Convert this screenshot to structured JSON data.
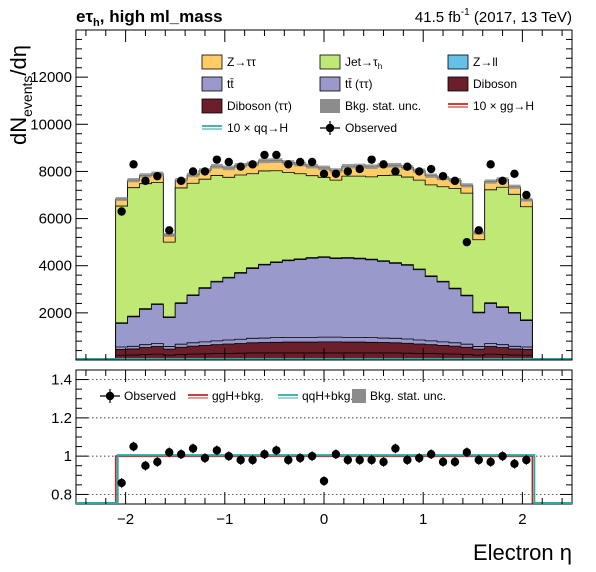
{
  "header": {
    "channel": "eτh",
    "channel_base": "eτ",
    "channel_sub": "h",
    "category": ", high ml_mass",
    "lumi_value": "41.5 fb",
    "lumi_exp": "-1",
    "lumi_rest": " (2017, 13 TeV)"
  },
  "axes": {
    "ylabel_main": "dNevents/dη",
    "ylabel_base": "dN",
    "ylabel_sub": "events",
    "ylabel_tail": "/dη",
    "xlabel": "Electron  η"
  },
  "colors": {
    "ztt": "#ffcc66",
    "jet": "#c0e874",
    "zll": "#64c0e8",
    "ttbar": "#9999cc",
    "ttbar_tt": "#9999cc",
    "diboson": "#6b1f2a",
    "diboson_tt": "#6b1f2a",
    "stat": "#8c8c8c",
    "ggh": "#cc2222",
    "qqh": "#2aa9a0",
    "observed": "#000000"
  },
  "legend": {
    "main": [
      {
        "key": "ztt",
        "label": "Z→ττ",
        "kind": "box"
      },
      {
        "key": "jet",
        "label": "Jet→τ",
        "sub": "h",
        "kind": "box"
      },
      {
        "key": "zll",
        "label": "Z→ll",
        "kind": "box"
      },
      {
        "key": "ttbar",
        "label": "tt̄",
        "kind": "box"
      },
      {
        "key": "ttbar_tt",
        "label": "tt̄ (ττ)",
        "kind": "box"
      },
      {
        "key": "diboson",
        "label": "Diboson",
        "kind": "box"
      },
      {
        "key": "diboson_tt",
        "label": "Diboson (ττ)",
        "kind": "box"
      },
      {
        "key": "stat",
        "label": "Bkg. stat. unc.",
        "kind": "box"
      },
      {
        "key": "ggh",
        "label": "10 × gg→H",
        "kind": "line"
      },
      {
        "key": "qqh",
        "label": "10 × qq→H",
        "kind": "line"
      },
      {
        "key": "observed",
        "label": "Observed",
        "kind": "marker"
      }
    ],
    "ratio": [
      {
        "key": "observed",
        "label": "Observed",
        "kind": "marker"
      },
      {
        "key": "ggh",
        "label": "ggH+bkg.",
        "kind": "line"
      },
      {
        "key": "qqh",
        "label": "qqH+bkg.",
        "kind": "line"
      },
      {
        "key": "stat",
        "label": "Bkg. stat. unc.",
        "kind": "box"
      }
    ]
  },
  "chart_data": [
    {
      "type": "area",
      "panel": "main",
      "stacked": true,
      "log_y": false,
      "xlim": [
        -2.5,
        2.5
      ],
      "ylim": [
        0,
        14000
      ],
      "xticks": [
        -2,
        -1,
        0,
        1,
        2
      ],
      "yticks": [
        2000,
        4000,
        6000,
        8000,
        10000,
        12000
      ],
      "bin_edges": [
        -2.1,
        -1.98,
        -1.86,
        -1.74,
        -1.62,
        -1.5,
        -1.38,
        -1.26,
        -1.14,
        -1.02,
        -0.9,
        -0.78,
        -0.66,
        -0.54,
        -0.42,
        -0.3,
        -0.18,
        -0.06,
        0.06,
        0.18,
        0.3,
        0.42,
        0.54,
        0.66,
        0.78,
        0.9,
        1.02,
        1.14,
        1.26,
        1.38,
        1.5,
        1.62,
        1.74,
        1.86,
        1.98,
        2.1
      ],
      "series": [
        {
          "key": "diboson_tt",
          "label": "Diboson (ττ)",
          "values": [
            200,
            210,
            230,
            250,
            200,
            230,
            250,
            260,
            270,
            280,
            290,
            300,
            300,
            300,
            300,
            300,
            300,
            300,
            300,
            300,
            300,
            300,
            300,
            300,
            290,
            280,
            270,
            260,
            250,
            230,
            200,
            250,
            230,
            210,
            200
          ]
        },
        {
          "key": "diboson",
          "label": "Diboson",
          "values": [
            250,
            260,
            300,
            320,
            260,
            310,
            340,
            360,
            380,
            400,
            410,
            430,
            440,
            450,
            460,
            460,
            460,
            470,
            470,
            460,
            460,
            450,
            440,
            430,
            420,
            400,
            380,
            360,
            340,
            310,
            260,
            320,
            300,
            260,
            250
          ]
        },
        {
          "key": "ttbar_tt",
          "label": "tt̄ (ττ)",
          "values": [
            100,
            110,
            120,
            130,
            110,
            130,
            140,
            150,
            160,
            170,
            180,
            190,
            190,
            200,
            200,
            200,
            200,
            200,
            200,
            200,
            200,
            200,
            190,
            190,
            180,
            170,
            160,
            150,
            140,
            130,
            110,
            130,
            120,
            110,
            100
          ]
        },
        {
          "key": "ttbar",
          "label": "tt̄",
          "values": [
            1000,
            1250,
            1500,
            1650,
            1230,
            1730,
            2000,
            2270,
            2500,
            2630,
            2800,
            2960,
            3100,
            3180,
            3250,
            3300,
            3360,
            3380,
            3330,
            3360,
            3330,
            3300,
            3250,
            3180,
            3130,
            2980,
            2730,
            2540,
            2290,
            2050,
            1430,
            1700,
            1580,
            1410,
            1120
          ]
        },
        {
          "key": "zll",
          "label": "Z→ll",
          "values": [
            30,
            30,
            30,
            30,
            30,
            30,
            30,
            30,
            30,
            30,
            30,
            30,
            30,
            30,
            30,
            30,
            30,
            30,
            30,
            30,
            30,
            30,
            30,
            30,
            30,
            30,
            30,
            30,
            30,
            30,
            30,
            30,
            30,
            30,
            30
          ]
        },
        {
          "key": "jet",
          "label": "Jet→τh",
          "values": [
            4950,
            5450,
            5300,
            5150,
            3170,
            4870,
            4740,
            4600,
            4490,
            4240,
            4140,
            3990,
            3960,
            3870,
            3720,
            3610,
            3470,
            3370,
            3300,
            3450,
            3480,
            3490,
            3620,
            3710,
            3710,
            3770,
            3860,
            4010,
            4230,
            4330,
            3070,
            4790,
            5070,
            5010,
            4800
          ]
        },
        {
          "key": "ztt",
          "label": "Z→ττ",
          "values": [
            300,
            320,
            350,
            370,
            300,
            330,
            350,
            370,
            390,
            400,
            410,
            420,
            430,
            430,
            420,
            410,
            400,
            400,
            410,
            420,
            430,
            430,
            430,
            420,
            410,
            400,
            390,
            370,
            350,
            330,
            300,
            350,
            330,
            320,
            300
          ]
        }
      ]
    },
    {
      "type": "scatter",
      "panel": "main",
      "name": "Observed",
      "x": [
        -2.04,
        -1.92,
        -1.8,
        -1.68,
        -1.56,
        -1.44,
        -1.32,
        -1.2,
        -1.08,
        -0.96,
        -0.84,
        -0.72,
        -0.6,
        -0.48,
        -0.36,
        -0.24,
        -0.12,
        0.0,
        0.12,
        0.24,
        0.36,
        0.48,
        0.6,
        0.72,
        0.84,
        0.96,
        1.08,
        1.2,
        1.32,
        1.44,
        1.56,
        1.68,
        1.8,
        1.92,
        2.04
      ],
      "y": [
        6300,
        8300,
        7600,
        7800,
        5500,
        7600,
        8000,
        8000,
        8500,
        8400,
        8200,
        8300,
        8700,
        8700,
        8300,
        8400,
        8400,
        7900,
        7900,
        8000,
        8100,
        8500,
        8300,
        8000,
        8200,
        8000,
        8100,
        7800,
        7600,
        5000,
        5500,
        8300,
        7600,
        7900,
        7000
      ],
      "yerr": 150
    },
    {
      "type": "scatter",
      "panel": "ratio",
      "name": "Observed",
      "xlim": [
        -2.5,
        2.5
      ],
      "ylim": [
        0.75,
        1.45
      ],
      "yticks": [
        0.8,
        1,
        1.2,
        1.4
      ],
      "x": [
        -2.04,
        -1.92,
        -1.8,
        -1.68,
        -1.56,
        -1.44,
        -1.32,
        -1.2,
        -1.08,
        -0.96,
        -0.84,
        -0.72,
        -0.6,
        -0.48,
        -0.36,
        -0.24,
        -0.12,
        0.0,
        0.12,
        0.24,
        0.36,
        0.48,
        0.6,
        0.72,
        0.84,
        0.96,
        1.08,
        1.2,
        1.32,
        1.44,
        1.56,
        1.68,
        1.8,
        1.92,
        2.04
      ],
      "y": [
        0.86,
        1.05,
        0.95,
        0.97,
        1.02,
        1.01,
        1.04,
        0.99,
        1.03,
        1.0,
        0.98,
        0.98,
        1.01,
        1.03,
        0.98,
        0.99,
        1.0,
        0.87,
        1.01,
        0.98,
        0.98,
        0.98,
        0.97,
        1.04,
        0.98,
        0.99,
        1.01,
        0.97,
        0.97,
        1.02,
        0.98,
        0.97,
        1.0,
        0.96,
        0.98
      ],
      "yerr": 0.025,
      "reference_lines": {
        "ggh": 1.0,
        "qqh": 1.0,
        "stat_unc": 0.006
      }
    }
  ]
}
